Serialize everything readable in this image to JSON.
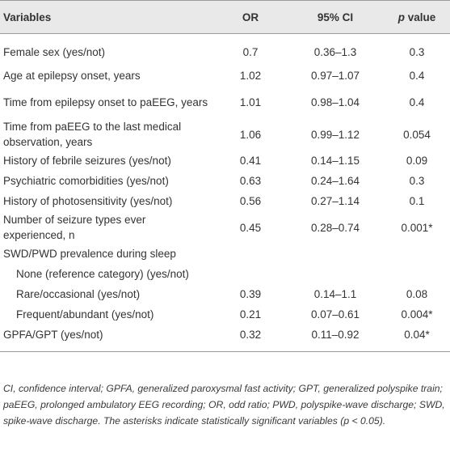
{
  "table": {
    "headers": {
      "variables": "Variables",
      "or": "OR",
      "ci": "95% CI",
      "p_italic": "p",
      "p_rest": " value"
    },
    "rows": [
      {
        "variable": "Female sex (yes/not)",
        "or": "0.7",
        "ci": "0.36–1.3",
        "p": "0.3"
      },
      {
        "variable": "Age at epilepsy onset, years",
        "or": "1.02",
        "ci": "0.97–1.07",
        "p": "0.4"
      },
      {
        "variable": "Time from epilepsy onset to paEEG, years",
        "or": "1.01",
        "ci": "0.98–1.04",
        "p": "0.4"
      },
      {
        "variable": "Time from paEEG to the last medical observation, years",
        "or": "1.06",
        "ci": "0.99–1.12",
        "p": "0.054"
      },
      {
        "variable": "History of febrile seizures (yes/not)",
        "or": "0.41",
        "ci": "0.14–1.15",
        "p": "0.09"
      },
      {
        "variable": "Psychiatric comorbidities (yes/not)",
        "or": "0.63",
        "ci": "0.24–1.64",
        "p": "0.3"
      },
      {
        "variable": "History of photosensitivity (yes/not)",
        "or": "0.56",
        "ci": "0.27–1.14",
        "p": "0.1"
      },
      {
        "variable": "Number of seizure types ever experienced, n",
        "or": "0.45",
        "ci": "0.28–0.74",
        "p": "0.001*"
      },
      {
        "variable": "SWD/PWD prevalence during sleep",
        "or": "",
        "ci": "",
        "p": ""
      },
      {
        "variable": "None (reference category) (yes/not)",
        "or": "",
        "ci": "",
        "p": ""
      },
      {
        "variable": "Rare/occasional (yes/not)",
        "or": "0.39",
        "ci": "0.14–1.1",
        "p": "0.08"
      },
      {
        "variable": "Frequent/abundant (yes/not)",
        "or": "0.21",
        "ci": "0.07–0.61",
        "p": "0.004*"
      },
      {
        "variable": "GPFA/GPT (yes/not)",
        "or": "0.32",
        "ci": "0.11–0.92",
        "p": "0.04*"
      }
    ]
  },
  "footnote": "CI, confidence interval; GPFA, generalized paroxysmal fast activity; GPT, generalized polyspike train; paEEG, prolonged ambulatory EEG recording; OR, odd ratio; PWD, polyspike-wave discharge; SWD, spike-wave discharge. The asterisks indicate statistically significant variables (p < 0.05)."
}
